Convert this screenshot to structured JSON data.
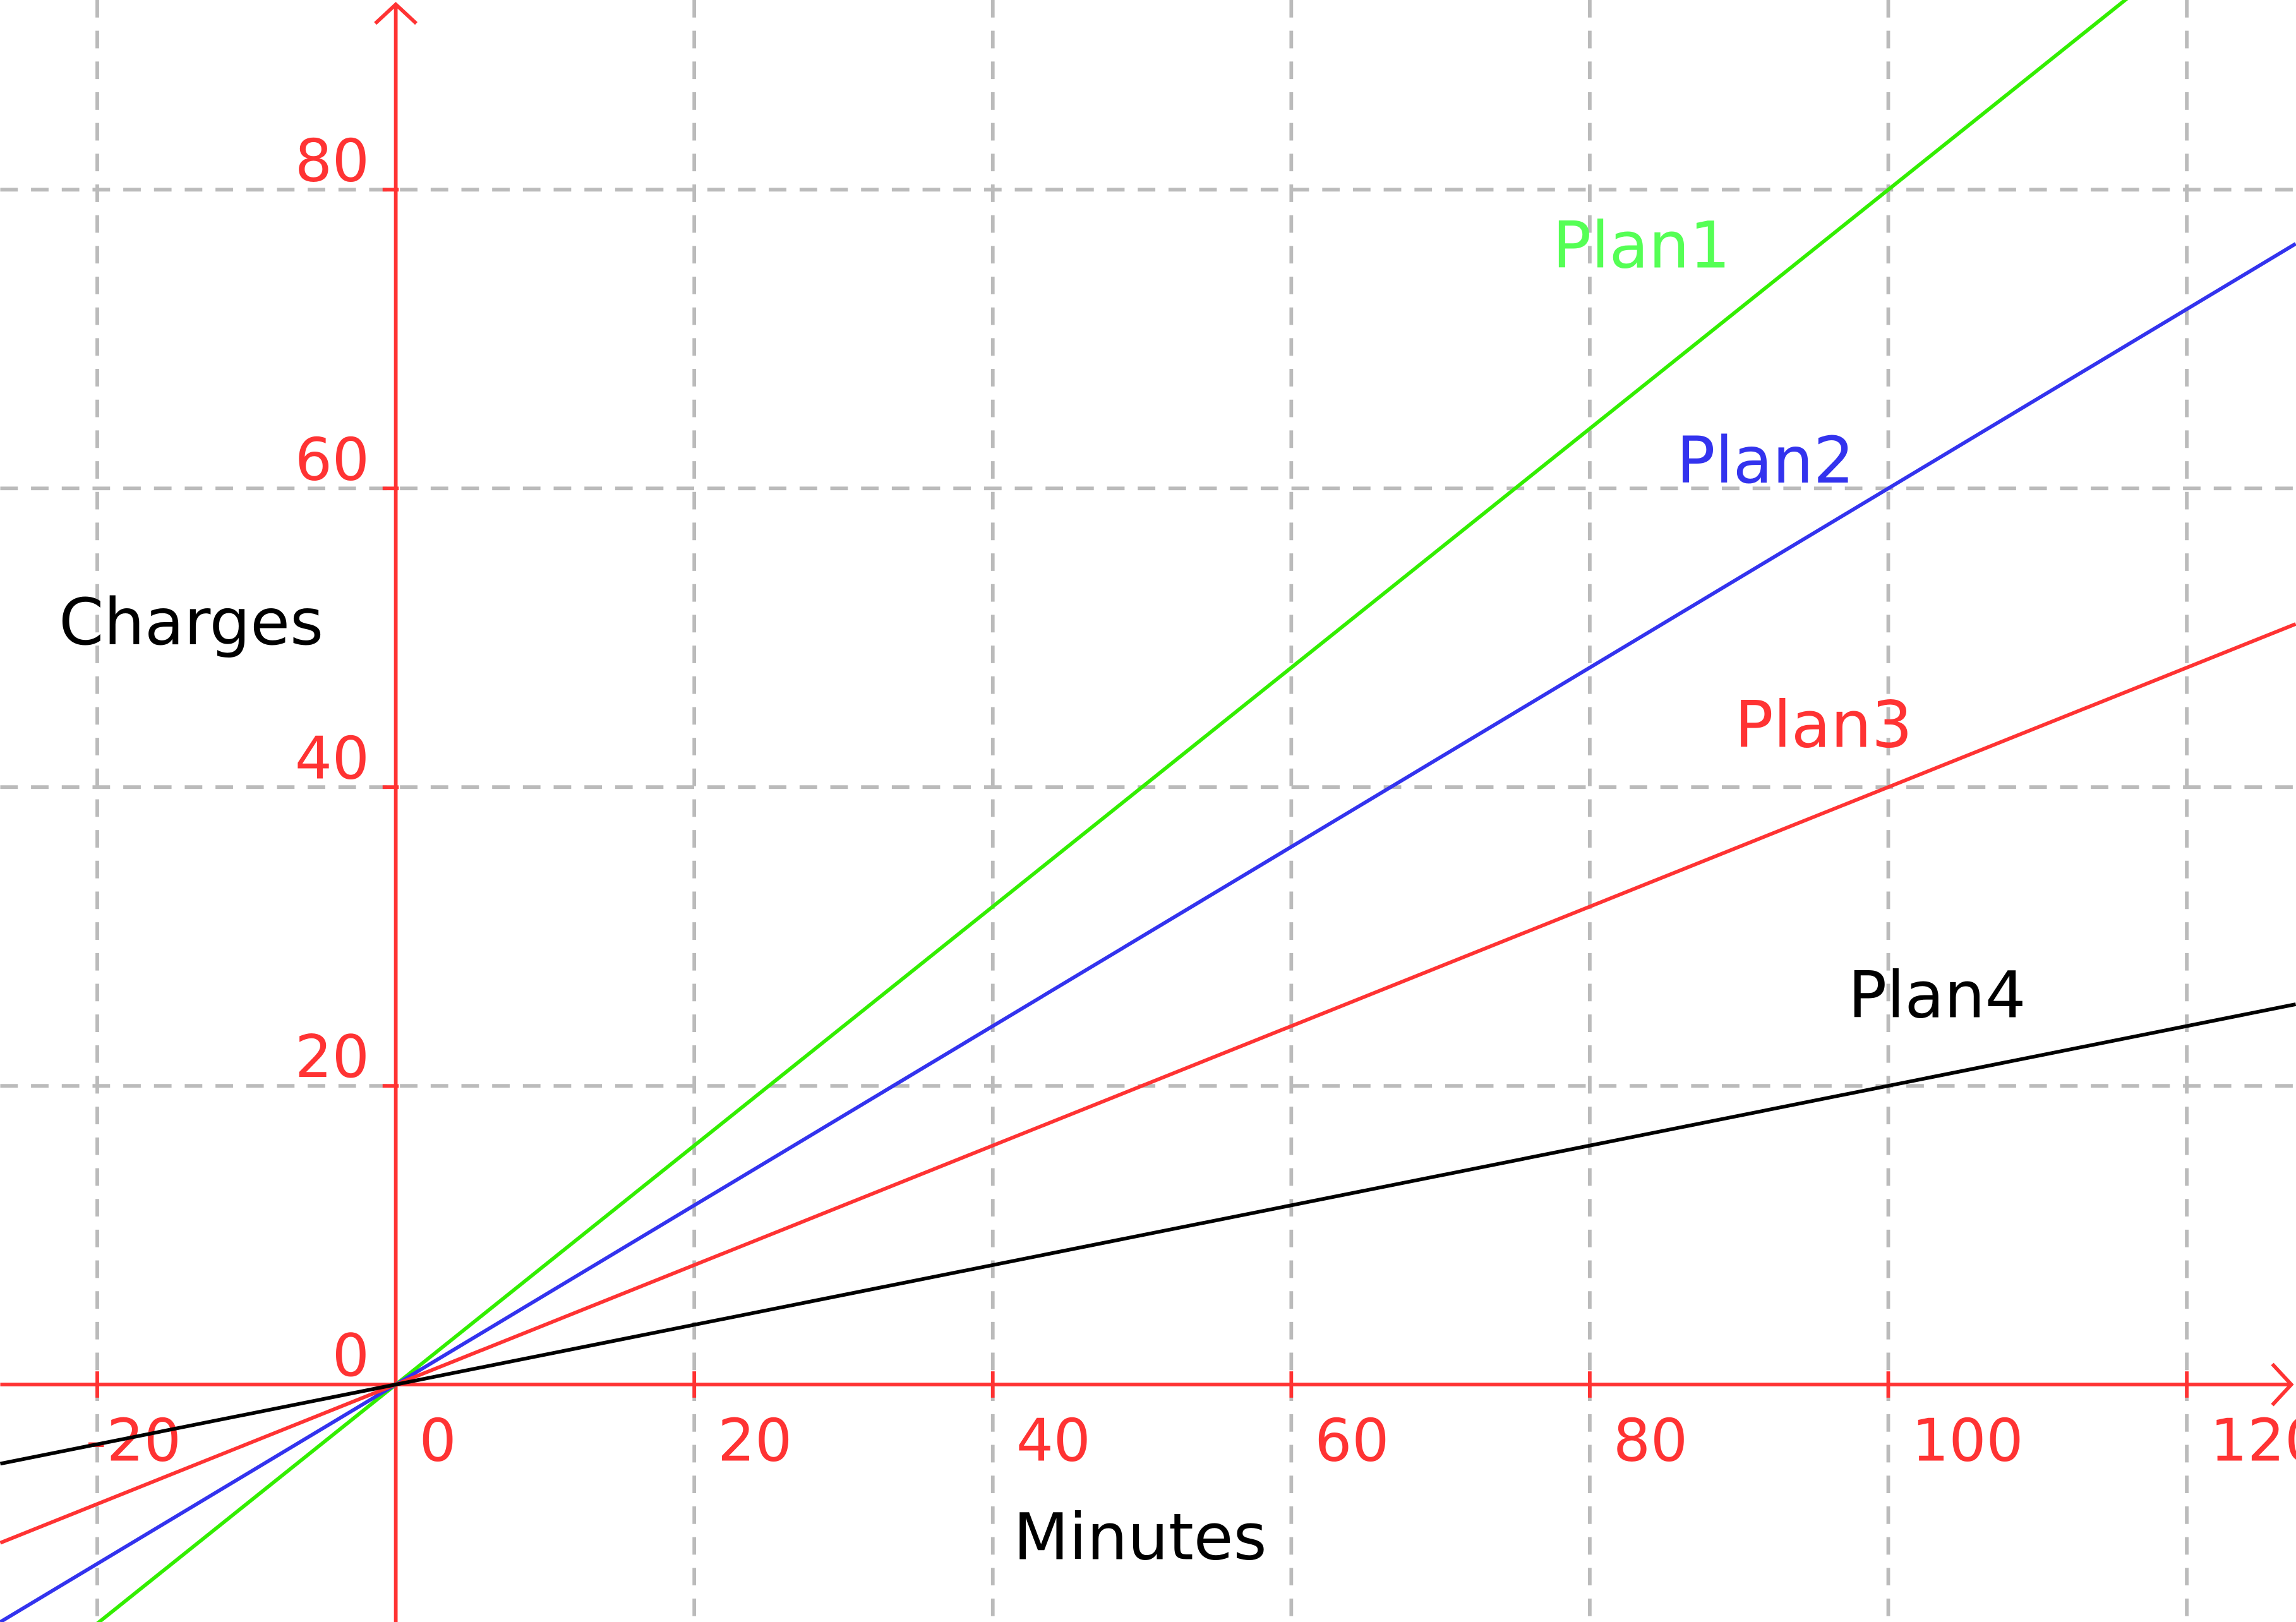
{
  "chart_data": {
    "type": "line",
    "title": "",
    "xlabel": "Minutes",
    "ylabel": "Charges",
    "xlim": [
      -26.5,
      127.3
    ],
    "ylim": [
      -15.9,
      92.7
    ],
    "grid": true,
    "x_ticks": [
      -20,
      0,
      20,
      40,
      60,
      80,
      100,
      120
    ],
    "x_tick_labels": [
      "-20",
      "0",
      "20",
      "40",
      "60",
      "80",
      "100",
      "120"
    ],
    "y_ticks": [
      0,
      20,
      40,
      60,
      80
    ],
    "y_tick_labels": [
      "0",
      "20",
      "40",
      "60",
      "80"
    ],
    "axis_color": "#ff3333",
    "grid_color": "#bbbbbb",
    "series": [
      {
        "name": "Plan1",
        "slope": 0.8,
        "intercept": 0,
        "color": "#33ee00",
        "label_color": "#55ff55",
        "label_at": [
          77.5,
          74.8
        ]
      },
      {
        "name": "Plan2",
        "slope": 0.6,
        "intercept": 0,
        "color": "#3333ee",
        "label_color": "#3333ee",
        "label_at": [
          85.8,
          60.4
        ]
      },
      {
        "name": "Plan3",
        "slope": 0.4,
        "intercept": 0,
        "color": "#ff3333",
        "label_color": "#ff3333",
        "label_at": [
          89.7,
          42.7
        ]
      },
      {
        "name": "Plan4",
        "slope": 0.2,
        "intercept": 0,
        "color": "#000000",
        "label_color": "#000000",
        "label_at": [
          97.3,
          24.6
        ]
      }
    ]
  }
}
